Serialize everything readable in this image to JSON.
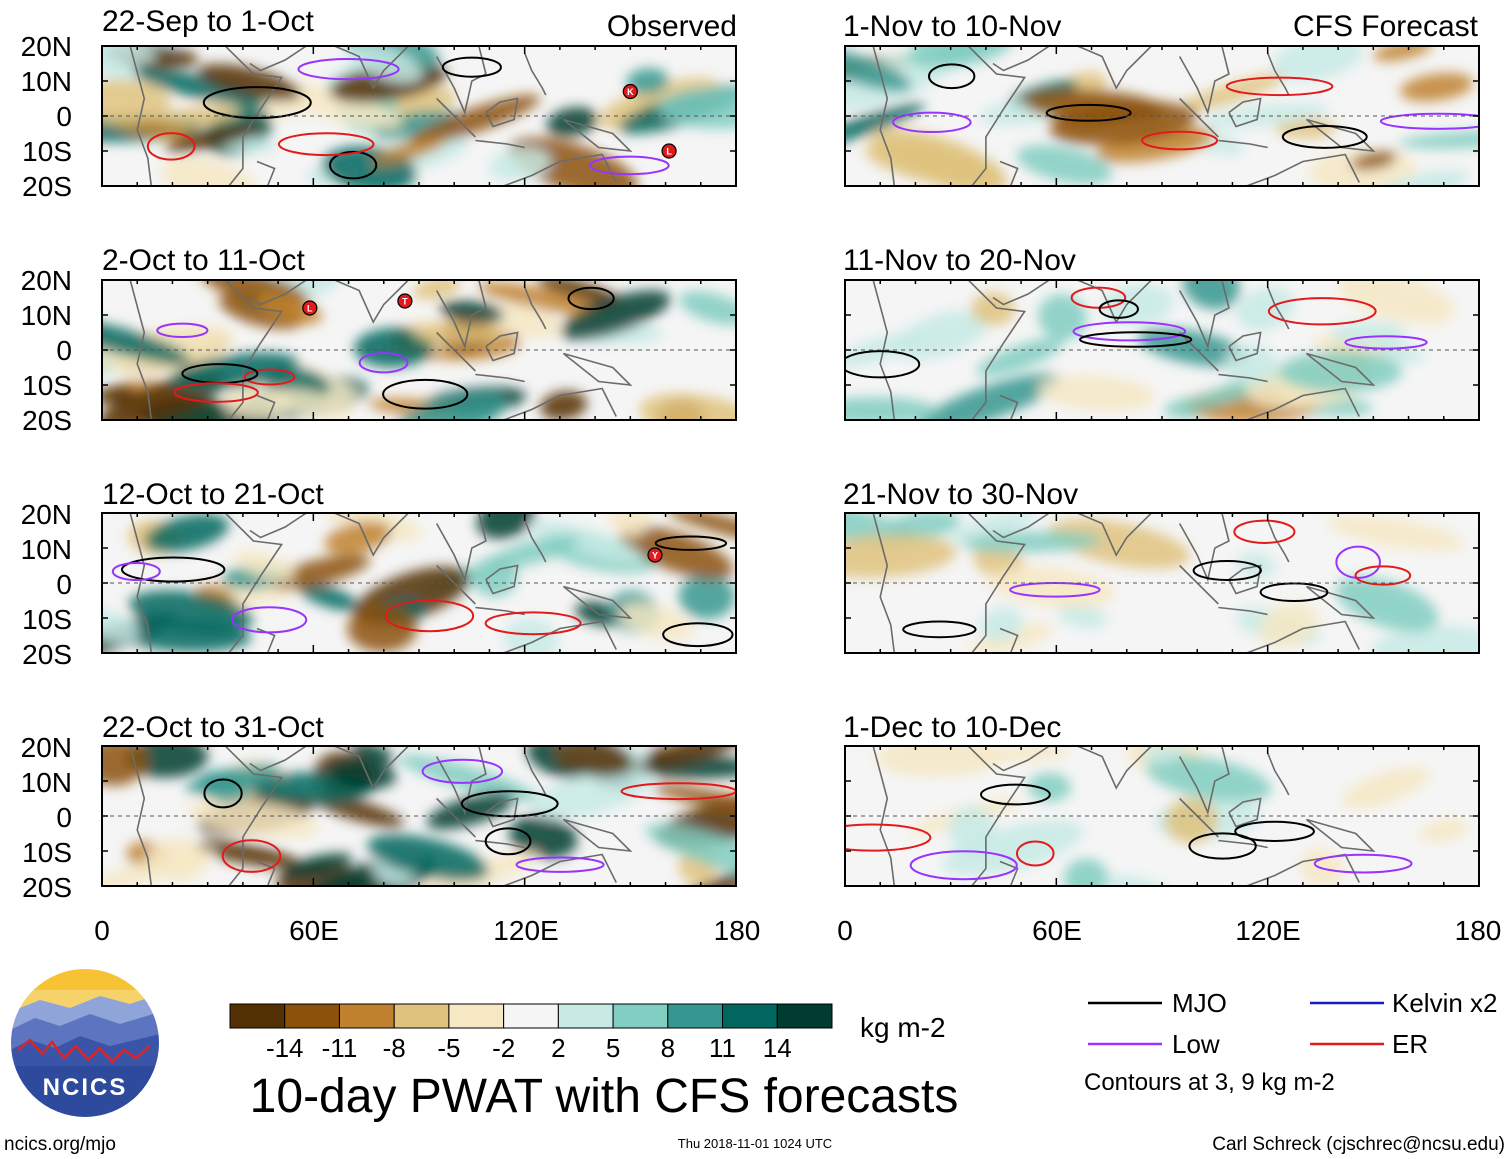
{
  "chart_data": {
    "type": "heatmap",
    "title": "10-day PWAT with CFS forecasts",
    "left_column_label": "Observed",
    "right_column_label": "CFS Forecast",
    "y_ticks": [
      "20N",
      "10N",
      "0",
      "10S",
      "20S"
    ],
    "x_ticks": [
      "0",
      "60E",
      "120E",
      "180"
    ],
    "x_range": [
      0,
      180
    ],
    "y_range": [
      -20,
      20
    ],
    "panels_left": [
      {
        "period": "22-Sep to 1-Oct",
        "storms": [
          {
            "label": "K",
            "lon": 150,
            "lat": 7
          },
          {
            "label": "L",
            "lon": 161,
            "lat": -10
          }
        ]
      },
      {
        "period": "2-Oct to 11-Oct",
        "storms": [
          {
            "label": "L",
            "lon": 59,
            "lat": 12
          },
          {
            "label": "T",
            "lon": 86,
            "lat": 14
          }
        ]
      },
      {
        "period": "12-Oct to 21-Oct",
        "storms": [
          {
            "label": "Y",
            "lon": 157,
            "lat": 8
          }
        ]
      },
      {
        "period": "22-Oct to 31-Oct",
        "storms": []
      }
    ],
    "panels_right": [
      {
        "period": "1-Nov to 10-Nov"
      },
      {
        "period": "11-Nov to 20-Nov"
      },
      {
        "period": "21-Nov to 30-Nov"
      },
      {
        "period": "1-Dec to 10-Dec"
      }
    ],
    "colorbar": {
      "unit": "kg m-2",
      "ticks": [
        "-14",
        "-11",
        "-8",
        "-5",
        "-2",
        "2",
        "5",
        "8",
        "11",
        "14"
      ],
      "colors": [
        "#543005",
        "#8c510a",
        "#bf812d",
        "#dfc27d",
        "#f6e8c3",
        "#f5f5f5",
        "#c7eae5",
        "#80cdc1",
        "#35978f",
        "#01665e",
        "#003c30"
      ]
    },
    "legend": {
      "items": [
        {
          "label": "MJO",
          "color": "#000000"
        },
        {
          "label": "Kelvin x2",
          "color": "#1a1acc"
        },
        {
          "label": "Low",
          "color": "#9933ff"
        },
        {
          "label": "ER",
          "color": "#e31a1c"
        }
      ],
      "note": "Contours at 3, 9 kg m-2"
    }
  },
  "footer": {
    "logo_text": "NCICS",
    "url": "ncics.org/mjo",
    "timestamp": "Thu 2018-11-01 1024 UTC",
    "credit": "Carl Schreck (cjschrec@ncsu.edu)"
  }
}
